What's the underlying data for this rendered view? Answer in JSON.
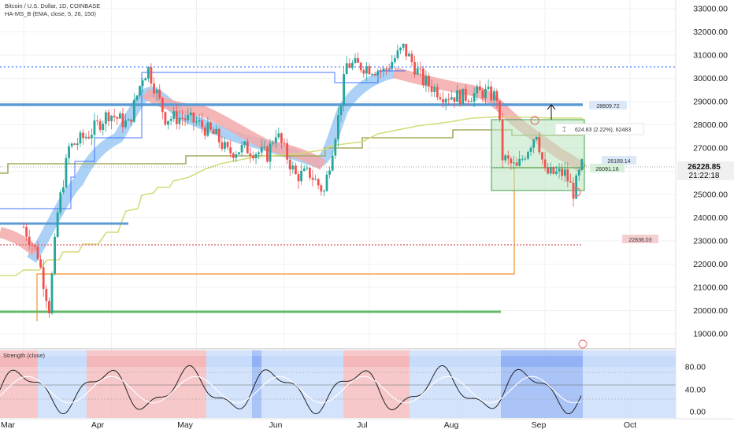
{
  "header": {
    "symbol_line": "Bitcoin / U.S. Dollar, 1D, COINBASE",
    "indicator_line": "HA-MS_B (EMA, close, 5, 26, 150)",
    "sub_indicator": "Strength (close)"
  },
  "price_axis": {
    "ticks": [
      "33000.00",
      "32000.00",
      "31000.00",
      "30000.00",
      "29000.00",
      "28000.00",
      "27000.00",
      "26000.00",
      "25000.00",
      "24000.00",
      "23000.00",
      "22000.00",
      "21000.00",
      "20000.00",
      "19000.00"
    ],
    "current_price": "26228.85",
    "countdown": "21:22:18"
  },
  "osc_axis": {
    "ticks": [
      "80.00",
      "40.00",
      "0.00"
    ]
  },
  "time_axis": {
    "labels": [
      "Mar",
      "Apr",
      "May",
      "Jun",
      "Jul",
      "Aug",
      "Sep",
      "Oct"
    ]
  },
  "labels": {
    "level_1": "28809.72",
    "level_2": "22836.03",
    "level_3": "26189.14",
    "level_4": "26091.16",
    "measure": "624.83 (2.22%), 62483"
  },
  "colors": {
    "up": "#26a69a",
    "down": "#ef5350",
    "blue_line": "#2962ff",
    "level_blue": "#5b9bd5",
    "level_red": "#e57373",
    "level_green": "#66bb6a",
    "orange": "#f5a04a",
    "olive": "#a7ab5e",
    "lime": "#d4dc7a",
    "band_blue": "#9ccaf5",
    "band_red": "#f2a9aa",
    "box_green": "#b9e6bf"
  },
  "chart_data": {
    "type": "candlestick",
    "x_range": [
      "2023-03-01",
      "2023-10-05"
    ],
    "ylim": [
      18200,
      33500
    ],
    "close_series": [
      [
        "2023-03-01",
        23600
      ],
      [
        "2023-03-06",
        22400
      ],
      [
        "2023-03-10",
        20100
      ],
      [
        "2023-03-13",
        24200
      ],
      [
        "2023-03-17",
        27000
      ],
      [
        "2023-03-24",
        27600
      ],
      [
        "2023-03-31",
        28500
      ],
      [
        "2023-04-07",
        28000
      ],
      [
        "2023-04-12",
        30100
      ],
      [
        "2023-04-14",
        30400
      ],
      [
        "2023-04-20",
        28300
      ],
      [
        "2023-04-26",
        28300
      ],
      [
        "2023-05-01",
        28100
      ],
      [
        "2023-05-08",
        27500
      ],
      [
        "2023-05-12",
        26800
      ],
      [
        "2023-05-18",
        27000
      ],
      [
        "2023-05-26",
        26700
      ],
      [
        "2023-05-29",
        27700
      ],
      [
        "2023-06-05",
        25800
      ],
      [
        "2023-06-10",
        25900
      ],
      [
        "2023-06-15",
        25100
      ],
      [
        "2023-06-20",
        28300
      ],
      [
        "2023-06-23",
        30600
      ],
      [
        "2023-06-30",
        30500
      ],
      [
        "2023-07-06",
        30300
      ],
      [
        "2023-07-13",
        31300
      ],
      [
        "2023-07-20",
        29900
      ],
      [
        "2023-07-27",
        29300
      ],
      [
        "2023-08-03",
        29200
      ],
      [
        "2023-08-10",
        29400
      ],
      [
        "2023-08-15",
        29200
      ],
      [
        "2023-08-17",
        26600
      ],
      [
        "2023-08-22",
        26100
      ],
      [
        "2023-08-29",
        27700
      ],
      [
        "2023-09-01",
        25900
      ],
      [
        "2023-09-08",
        25900
      ],
      [
        "2023-09-11",
        25100
      ],
      [
        "2023-09-14",
        26228.85
      ]
    ],
    "levels": [
      {
        "label": "28809.72",
        "y": 28809.72
      },
      {
        "label": "22836.03",
        "y": 22836.03
      },
      {
        "label": "26189.14",
        "y": 26189.14
      },
      {
        "label": "26091.16",
        "y": 26091.16
      }
    ],
    "measure": {
      "text": "624.83 (2.22%), 62483"
    },
    "oscillator": {
      "name": "Strength (close)",
      "ticks": [
        80,
        40,
        0
      ]
    }
  }
}
